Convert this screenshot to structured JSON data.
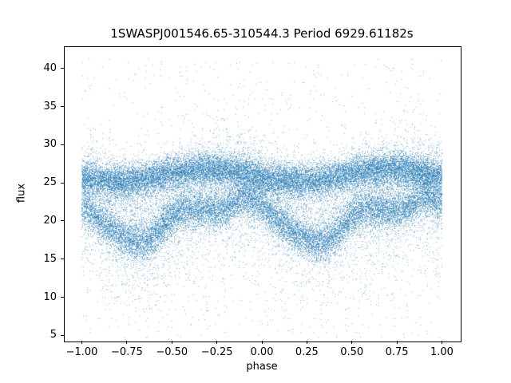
{
  "figure": {
    "background": "#ffffff",
    "frame_color": "#000000"
  },
  "chart_data": {
    "type": "scatter",
    "title": "1SWASPJ001546.65-310544.3 Period 6929.61182s",
    "xlabel": "phase",
    "ylabel": "flux",
    "xlim": [
      -1.1,
      1.1
    ],
    "ylim": [
      4.3,
      42.9
    ],
    "x_data_range": [
      -1.0,
      1.0
    ],
    "grid": false,
    "legend": "none",
    "marker_color": "#1f77b4",
    "marker_alpha": 0.5,
    "marker_size_px": 1,
    "n_points": 45000,
    "seed": 1546,
    "xticks": {
      "values": [
        -1.0,
        -0.75,
        -0.5,
        -0.25,
        0.0,
        0.25,
        0.5,
        0.75,
        1.0
      ],
      "labels": [
        "−1.00",
        "−0.75",
        "−0.50",
        "−0.25",
        "0.00",
        "0.25",
        "0.50",
        "0.75",
        "1.00"
      ]
    },
    "yticks": {
      "values": [
        5,
        10,
        15,
        20,
        25,
        30,
        35,
        40
      ],
      "labels": [
        "5",
        "10",
        "15",
        "20",
        "25",
        "30",
        "35",
        "40"
      ]
    },
    "description": "Phase-folded light curve, two cycles (phase -1 to 1). Dense upper band near flux 25-27 at all phases; variable lower band dips to flux ~17 near phase 0.35 (and -0.65) and sits near flux ~21.4 around phase 0.73 (and -0.27) forming hollow eye shapes below the upper band; diffuse scatter spans flux ~8-33 with sparse outliers from 5 to 41.",
    "model_components": [
      {
        "name": "upper-band",
        "weight": 0.44,
        "type": "cosine",
        "base": 26.0,
        "terms": [
          {
            "amp": 0.8,
            "freq": 1,
            "phase": 0.7
          }
        ],
        "sigma": 1.15
      },
      {
        "name": "variable-lower-band",
        "weight": 0.355,
        "type": "table",
        "phi": [
          0,
          0.05,
          0.1,
          0.15,
          0.2,
          0.25,
          0.3,
          0.35,
          0.4,
          0.45,
          0.5,
          0.55,
          0.6,
          0.65,
          0.7,
          0.75,
          0.8,
          0.85,
          0.9,
          0.95,
          1.0
        ],
        "mu": [
          22.0,
          21.0,
          20.0,
          19.0,
          18.2,
          17.6,
          17.2,
          17.2,
          17.9,
          19.2,
          20.6,
          21.3,
          21.5,
          21.5,
          21.4,
          21.3,
          21.6,
          22.4,
          23.3,
          22.8,
          22.0
        ],
        "sigma": 1.25
      },
      {
        "name": "diffuse-scatter",
        "weight": 0.18,
        "type": "cosine",
        "base": 23.0,
        "terms": [
          {
            "amp": -2.2,
            "freq": 1,
            "phase": 0.33
          }
        ],
        "sigma": 3.3,
        "skew_down": 1.6
      },
      {
        "name": "outliers",
        "weight": 0.025,
        "type": "uniform",
        "range": [
          4.6,
          41.3
        ]
      }
    ]
  }
}
